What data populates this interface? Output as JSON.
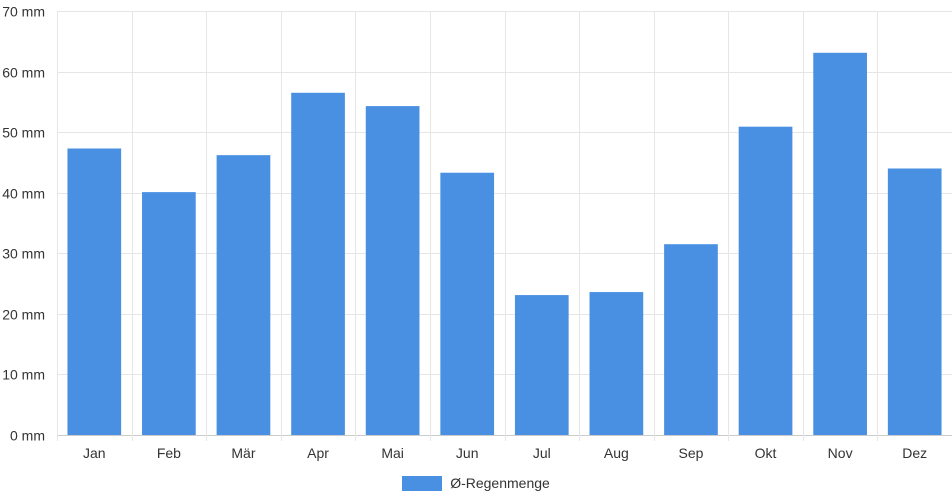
{
  "chart_data": {
    "type": "bar",
    "title": "",
    "xlabel": "",
    "ylabel": "",
    "categories": [
      "Jan",
      "Feb",
      "Mär",
      "Apr",
      "Mai",
      "Jun",
      "Jul",
      "Aug",
      "Sep",
      "Okt",
      "Nov",
      "Dez"
    ],
    "series": [
      {
        "name": "Ø-Regenmenge",
        "values": [
          47.3,
          40.1,
          46.2,
          56.5,
          54.3,
          43.3,
          23.1,
          23.6,
          31.5,
          50.9,
          63.1,
          44.0
        ]
      }
    ],
    "unit": "mm",
    "ylim": [
      0,
      70
    ],
    "yticks": [
      0,
      10,
      20,
      30,
      40,
      50,
      60,
      70
    ],
    "ytick_labels": [
      "0 mm",
      "10 mm",
      "20 mm",
      "30 mm",
      "40 mm",
      "50 mm",
      "60 mm",
      "70 mm"
    ],
    "grid": true,
    "legend_position": "bottom-center",
    "colors": {
      "bar": "#4a90e2",
      "grid": "#e6e6e6",
      "axis": "#cccccc",
      "text": "#333333"
    }
  }
}
